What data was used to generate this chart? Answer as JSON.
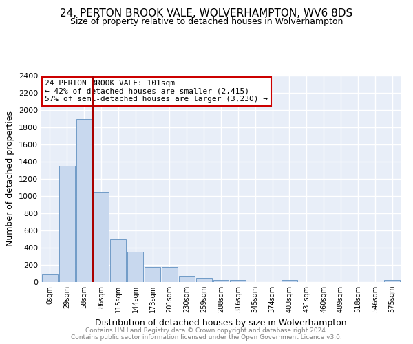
{
  "title": "24, PERTON BROOK VALE, WOLVERHAMPTON, WV6 8DS",
  "subtitle": "Size of property relative to detached houses in Wolverhampton",
  "xlabel": "Distribution of detached houses by size in Wolverhampton",
  "ylabel": "Number of detached properties",
  "footer1": "Contains HM Land Registry data © Crown copyright and database right 2024.",
  "footer2": "Contains public sector information licensed under the Open Government Licence v3.0.",
  "bin_labels": [
    "0sqm",
    "29sqm",
    "58sqm",
    "86sqm",
    "115sqm",
    "144sqm",
    "173sqm",
    "201sqm",
    "230sqm",
    "259sqm",
    "288sqm",
    "316sqm",
    "345sqm",
    "374sqm",
    "403sqm",
    "431sqm",
    "460sqm",
    "489sqm",
    "518sqm",
    "546sqm",
    "575sqm"
  ],
  "bar_heights": [
    100,
    1350,
    1900,
    1050,
    500,
    350,
    175,
    175,
    75,
    50,
    25,
    25,
    0,
    0,
    25,
    0,
    0,
    0,
    0,
    0,
    25
  ],
  "bar_color": "#c8d8ee",
  "bar_edge_color": "#6090c0",
  "vline_color": "#aa0000",
  "vline_pos": 2.5,
  "annotation_title": "24 PERTON BROOK VALE: 101sqm",
  "annotation_line1": "← 42% of detached houses are smaller (2,415)",
  "annotation_line2": "57% of semi-detached houses are larger (3,230) →",
  "annotation_box_color": "#cc0000",
  "ylim": [
    0,
    2400
  ],
  "yticks": [
    0,
    200,
    400,
    600,
    800,
    1000,
    1200,
    1400,
    1600,
    1800,
    2000,
    2200,
    2400
  ],
  "plot_bg_color": "#e8eef8",
  "grid_color": "#ffffff",
  "title_fontsize": 11,
  "subtitle_fontsize": 9,
  "xlabel_fontsize": 9,
  "ylabel_fontsize": 9,
  "tick_fontsize": 8,
  "annotation_fontsize": 8
}
